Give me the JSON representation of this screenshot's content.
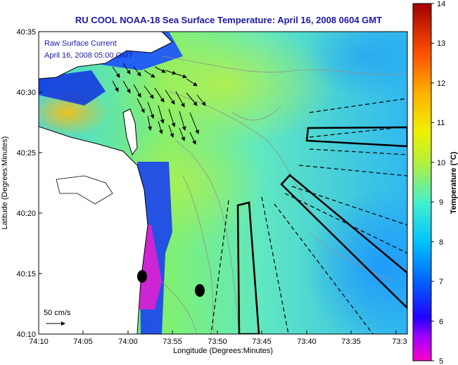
{
  "title": "RU COOL  NOAA-18  Sea Surface Temperature:  April 16, 2008 0604 GMT",
  "legend": {
    "line1": "Raw Surface Current",
    "line2": "April 16, 2008 05:00 GMT"
  },
  "scale_label": "50 cm/s",
  "axes": {
    "xlabel": "Longitude (Degrees:Minutes)",
    "ylabel": "Latitude (Degrees:Minutes)",
    "x_ticks": [
      "74:10",
      "74:05",
      "74:00",
      "73:55",
      "73:50",
      "73:45",
      "73:40",
      "73:35",
      "73:3"
    ],
    "y_ticks": [
      "40:35",
      "40:30",
      "40:25",
      "40:20",
      "40:15",
      "40:10"
    ]
  },
  "colorbar": {
    "label": "Temperature (°C)",
    "min": 5,
    "max": 14,
    "ticks": [
      "14",
      "13",
      "12",
      "11",
      "10",
      "9",
      "8",
      "7",
      "6",
      "5"
    ]
  },
  "colors": {
    "title": "#1a1aa8",
    "land": "#ffffff",
    "warm": "#e0b020",
    "cold": "#1020e0",
    "mid": "#60e0c0"
  }
}
